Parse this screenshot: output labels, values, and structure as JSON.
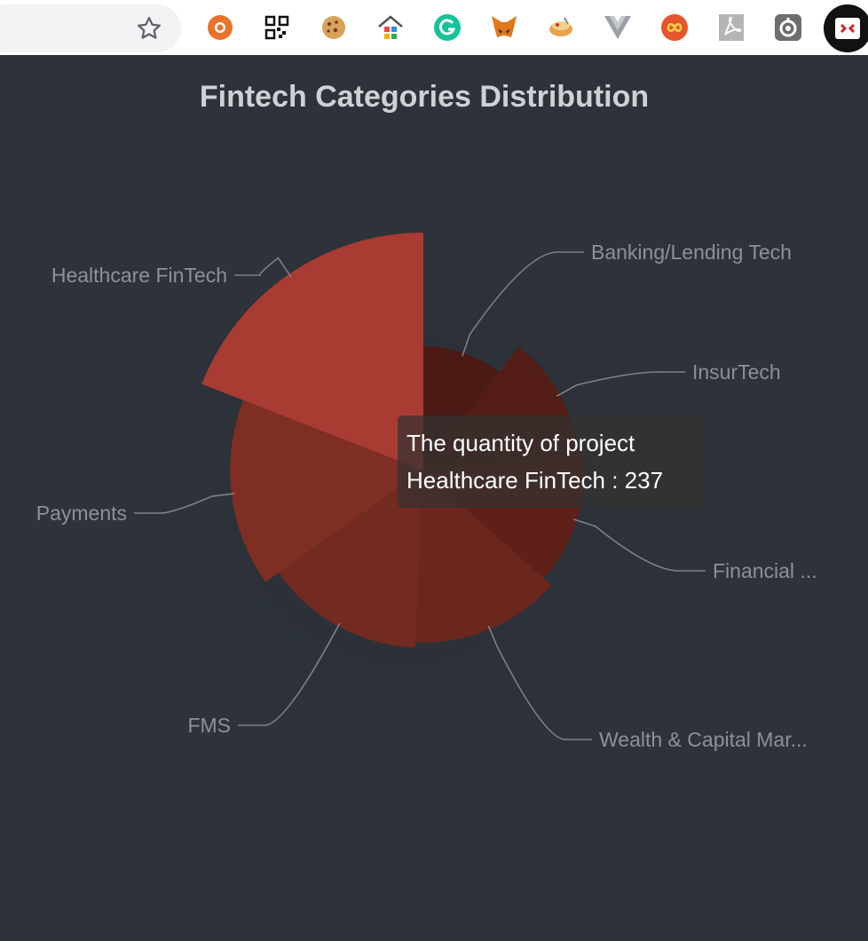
{
  "browser": {
    "extensions": [
      "lifebuoy-icon",
      "qr-code-icon",
      "cookie-icon",
      "home-apps-icon",
      "grammarly-icon",
      "metamask-fox-icon",
      "food-bowl-icon",
      "vue-icon",
      "infinity-icon",
      "pdf-icon",
      "refresh-circle-icon",
      "redirect-icon"
    ]
  },
  "chart_data": {
    "type": "pie",
    "variant": "rose-radius",
    "title": "Fintech Categories Distribution",
    "series_name": "The quantity of project",
    "slices": [
      {
        "label": "Banking/Lending Tech",
        "label_display": "Banking/Lending Tech",
        "value": 130
      },
      {
        "label": "InsurTech",
        "label_display": "InsurTech",
        "value": 160
      },
      {
        "label": "Financial ...",
        "label_display": "Financial ...",
        "value": 165
      },
      {
        "label": "Wealth & Capital Mar...",
        "label_display": "Wealth & Capital Mar...",
        "value": 175
      },
      {
        "label": "FMS",
        "label_display": "FMS",
        "value": 180
      },
      {
        "label": "Payments",
        "label_display": "Payments",
        "value": 195
      },
      {
        "label": "Healthcare FinTech",
        "label_display": "Healthcare FinTech",
        "value": 237
      }
    ],
    "colors": [
      "#4b1a14",
      "#531d16",
      "#5e2019",
      "#6b261d",
      "#732a20",
      "#7e2e22",
      "#a83b32"
    ],
    "legend": "none"
  },
  "tooltip": {
    "line1": "The quantity of project",
    "line2": "Healthcare FinTech : 237"
  }
}
